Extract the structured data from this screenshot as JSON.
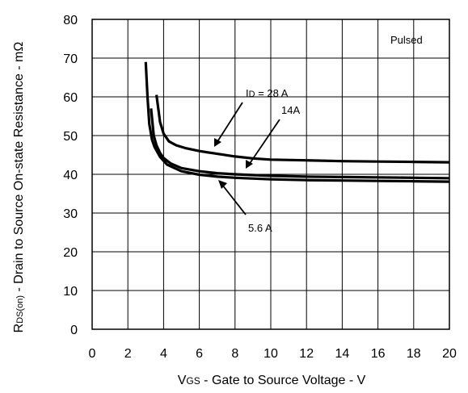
{
  "chart_data": {
    "type": "line",
    "xlabel_main": "V",
    "xlabel_sub": "GS",
    "xlabel_rest": " - Gate to Source Voltage - V",
    "ylabel_main": "R",
    "ylabel_sub": "DS(on)",
    "ylabel_rest": " - Drain to Source On-state Resistance - mΩ",
    "xlim": [
      0,
      20
    ],
    "ylim": [
      0,
      80
    ],
    "x_ticks": [
      0,
      2,
      4,
      6,
      8,
      10,
      12,
      14,
      16,
      18,
      20
    ],
    "y_ticks": [
      0,
      10,
      20,
      30,
      40,
      50,
      60,
      70,
      80
    ],
    "grid": true,
    "series": [
      {
        "name": "28 A",
        "x": [
          3.6,
          3.8,
          4.0,
          4.3,
          4.7,
          5.2,
          6,
          7,
          8,
          9,
          10,
          12,
          14,
          16,
          18,
          20
        ],
        "y": [
          60.5,
          53.5,
          50.5,
          48.5,
          47.5,
          46.8,
          46.0,
          45.3,
          44.6,
          44.1,
          43.8,
          43.6,
          43.4,
          43.3,
          43.2,
          43.1
        ]
      },
      {
        "name": "14A",
        "x": [
          3.3,
          3.45,
          3.6,
          3.8,
          4.0,
          4.4,
          5.0,
          6,
          7,
          8,
          10,
          12,
          14,
          16,
          18,
          20
        ],
        "y": [
          57,
          50,
          47.5,
          45.5,
          44.2,
          42.8,
          41.6,
          40.8,
          40.3,
          40.0,
          39.6,
          39.4,
          39.3,
          39.2,
          39.1,
          39.0
        ]
      },
      {
        "name": "5.6 A",
        "x": [
          3.0,
          3.1,
          3.2,
          3.35,
          3.5,
          3.8,
          4.2,
          5.0,
          6,
          7,
          8,
          10,
          12,
          14,
          16,
          18,
          20
        ],
        "y": [
          69,
          60,
          53,
          49,
          47,
          44.5,
          42.5,
          40.8,
          39.9,
          39.4,
          39.1,
          38.7,
          38.5,
          38.4,
          38.3,
          38.2,
          38.1
        ]
      }
    ],
    "annotations": {
      "pulsed": "Pulsed",
      "id_prefix": "I",
      "id_sub": "D",
      "label_28": " = 28 A",
      "label_14": "14A",
      "label_56": "5.6 A"
    }
  }
}
